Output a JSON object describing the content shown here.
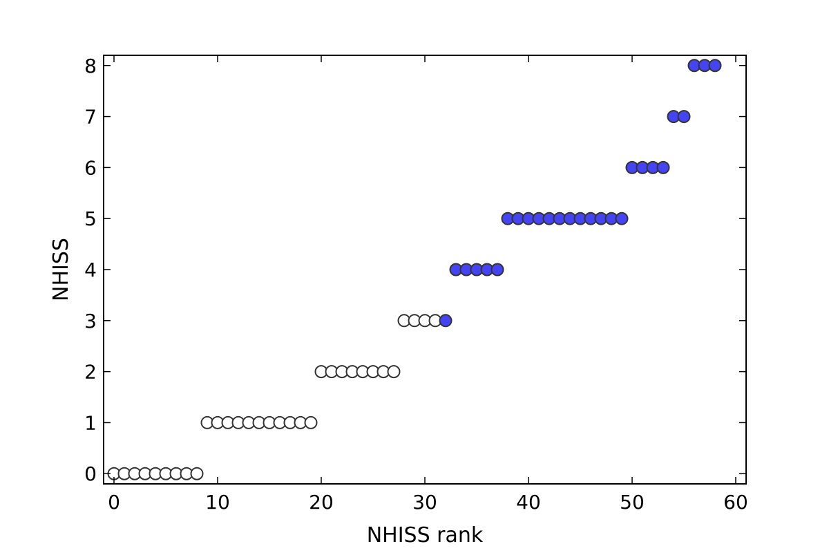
{
  "chart_data": {
    "type": "scatter",
    "title": "",
    "xlabel": "NHISS rank",
    "ylabel": "NHISS",
    "xlim": [
      -1,
      61
    ],
    "ylim": [
      -0.2,
      8.2
    ],
    "xticks": [
      0,
      10,
      20,
      30,
      40,
      50,
      60
    ],
    "yticks": [
      0,
      1,
      2,
      3,
      4,
      5,
      6,
      7,
      8
    ],
    "grid": false,
    "legend": "none",
    "colors": {
      "open_fill": "#ffffff",
      "filled_fill": "#4444f2",
      "marker_edge": "#333333"
    },
    "series": [
      {
        "fill": "open",
        "x": [
          0,
          1,
          2,
          3,
          4,
          5,
          6,
          7,
          8,
          9,
          10,
          11,
          12,
          13,
          14,
          15,
          16,
          17,
          18,
          19,
          20,
          21,
          22,
          23,
          24,
          25,
          26,
          27,
          28,
          29,
          30,
          31
        ],
        "y": [
          0,
          0,
          0,
          0,
          0,
          0,
          0,
          0,
          0,
          1,
          1,
          1,
          1,
          1,
          1,
          1,
          1,
          1,
          1,
          1,
          2,
          2,
          2,
          2,
          2,
          2,
          2,
          2,
          3,
          3,
          3,
          3
        ]
      },
      {
        "fill": "filled",
        "x": [
          32,
          33,
          34,
          35,
          36,
          37,
          38,
          39,
          40,
          41,
          42,
          43,
          44,
          45,
          46,
          47,
          48,
          49,
          50,
          51,
          52,
          53,
          54,
          55,
          56,
          57,
          58
        ],
        "y": [
          3,
          4,
          4,
          4,
          4,
          4,
          5,
          5,
          5,
          5,
          5,
          5,
          5,
          5,
          5,
          5,
          5,
          5,
          6,
          6,
          6,
          6,
          7,
          7,
          8,
          8,
          8
        ]
      }
    ]
  }
}
